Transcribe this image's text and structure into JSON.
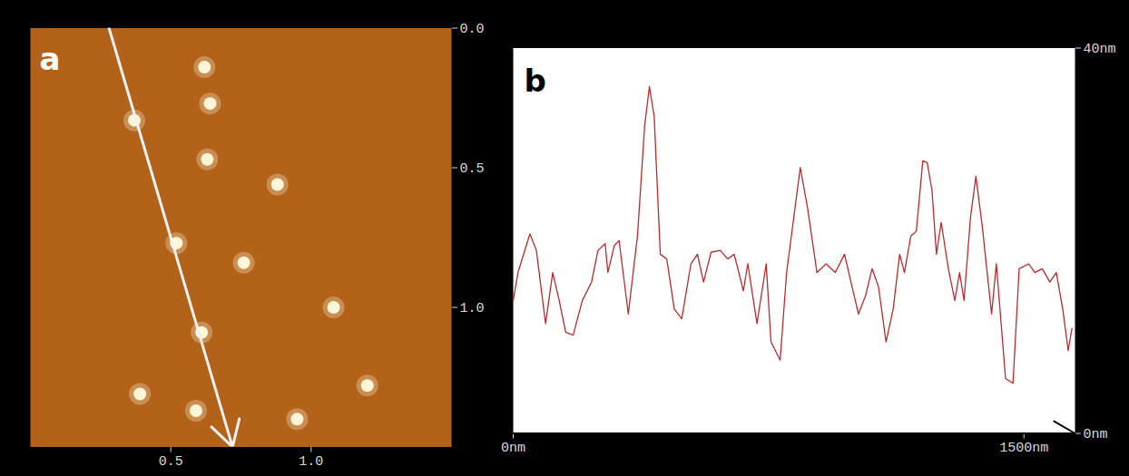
{
  "chart_data": [
    {
      "type": "scatter",
      "title": "a",
      "marker": "circle",
      "color": "#fff6d8",
      "x": [
        0.37,
        0.64,
        0.62,
        0.88,
        0.52,
        0.76,
        0.61,
        1.08,
        0.59,
        0.39,
        1.2,
        0.63,
        0.95
      ],
      "y": [
        0.33,
        0.27,
        0.14,
        0.56,
        0.77,
        0.84,
        1.09,
        1.0,
        1.37,
        1.31,
        1.28,
        0.47,
        1.4
      ],
      "xlim": [
        0,
        1.5
      ],
      "ylim": [
        0,
        1.5
      ],
      "xticks": [
        0.5,
        {
          "value": 1,
          "label": "1.0"
        }
      ],
      "yticks": [
        {
          "value": 0,
          "label": "0.0"
        },
        0.5,
        {
          "value": 1,
          "label": "1.0"
        }
      ],
      "profile_line": {
        "x": [
          0.28,
          0.72
        ],
        "y": [
          0,
          1.5
        ]
      }
    },
    {
      "type": "line",
      "title": "b",
      "color": "#c0282d",
      "line_style": "solid",
      "x": [
        0,
        14,
        49,
        68,
        95,
        116,
        135,
        154,
        176,
        203,
        230,
        249,
        270,
        278,
        297,
        311,
        338,
        365,
        386,
        400,
        414,
        432,
        451,
        473,
        495,
        522,
        541,
        559,
        581,
        608,
        630,
        649,
        676,
        689,
        716,
        743,
        757,
        784,
        803,
        824,
        843,
        865,
        892,
        919,
        946,
        973,
        992,
        1014,
        1035,
        1054,
        1073,
        1095,
        1116,
        1135,
        1149,
        1168,
        1184,
        1203,
        1216,
        1230,
        1243,
        1257,
        1278,
        1297,
        1311,
        1324,
        1343,
        1359,
        1378,
        1392,
        1405,
        1419,
        1446,
        1468,
        1486,
        1514,
        1532,
        1554,
        1576,
        1595,
        1614,
        1630,
        1641
      ],
      "values": [
        13.8,
        16.7,
        20.7,
        19.0,
        11.4,
        16.7,
        13.8,
        10.5,
        10.2,
        13.8,
        15.7,
        19.0,
        19.7,
        16.7,
        19.5,
        20.0,
        12.4,
        20.5,
        31.9,
        36.0,
        32.9,
        18.6,
        18.1,
        12.9,
        11.9,
        17.6,
        18.6,
        15.7,
        18.8,
        19.0,
        18.1,
        18.6,
        14.8,
        17.6,
        11.4,
        17.6,
        9.5,
        7.6,
        16.7,
        22.4,
        27.6,
        23.3,
        16.7,
        17.6,
        16.7,
        18.6,
        15.7,
        12.4,
        14.3,
        17.1,
        15.2,
        9.5,
        12.9,
        18.6,
        16.7,
        20.5,
        21.0,
        28.3,
        28.1,
        25.2,
        18.6,
        21.9,
        17.1,
        13.8,
        16.7,
        13.8,
        22.4,
        26.7,
        21.4,
        16.7,
        12.4,
        17.6,
        5.7,
        5.2,
        17.1,
        17.6,
        16.7,
        17.1,
        15.7,
        16.7,
        12.9,
        8.6,
        10.9
      ],
      "xlim": [
        0,
        1650
      ],
      "ylim": [
        0,
        40
      ],
      "xticks": [
        {
          "value": 0,
          "label": "0nm"
        },
        {
          "value": 1500,
          "label": "1500nm"
        }
      ],
      "yticks": [
        {
          "value": 0,
          "label": "0nm"
        },
        {
          "value": 40,
          "label": "40nm"
        }
      ]
    }
  ]
}
